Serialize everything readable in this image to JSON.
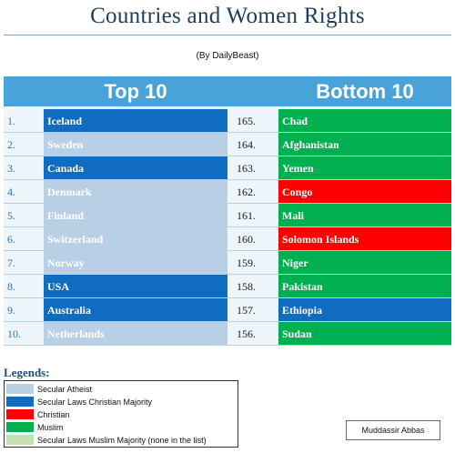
{
  "title": "Countries and Women Rights",
  "subtitle": "(By DailyBeast)",
  "headers": {
    "top": "Top 10",
    "bottom": "Bottom 10"
  },
  "colors": {
    "secular_atheist": "#b8cfe6",
    "secular_christian": "#0f6cc0",
    "christian": "#ff0000",
    "muslim": "#00b050",
    "secular_muslim": "#c6e0b4",
    "header": "#4aa3d8"
  },
  "rows": [
    {
      "rank": "1.",
      "country": "Iceland",
      "group": "secular_christian",
      "brank": "165.",
      "bcountry": "Chad",
      "bgroup": "muslim"
    },
    {
      "rank": "2.",
      "country": "Sweden",
      "group": "secular_atheist",
      "brank": "164.",
      "bcountry": "Afghanistan",
      "bgroup": "muslim"
    },
    {
      "rank": "3.",
      "country": "Canada",
      "group": "secular_christian",
      "brank": "163.",
      "bcountry": "Yemen",
      "bgroup": "muslim"
    },
    {
      "rank": "4.",
      "country": "Denmark",
      "group": "secular_atheist",
      "brank": "162.",
      "bcountry": "Congo",
      "bgroup": "christian"
    },
    {
      "rank": "5.",
      "country": "Finland",
      "group": "secular_atheist",
      "brank": "161.",
      "bcountry": "Mali",
      "bgroup": "muslim"
    },
    {
      "rank": "6.",
      "country": "Switzerland",
      "group": "secular_atheist",
      "brank": "160.",
      "bcountry": "Solomon Islands",
      "bgroup": "christian"
    },
    {
      "rank": "7.",
      "country": "Norway",
      "group": "secular_atheist",
      "brank": "159.",
      "bcountry": "Niger",
      "bgroup": "muslim"
    },
    {
      "rank": "8.",
      "country": "USA",
      "group": "secular_christian",
      "brank": "158.",
      "bcountry": "Pakistan",
      "bgroup": "muslim"
    },
    {
      "rank": "9.",
      "country": "Australia",
      "group": "secular_christian",
      "brank": "157.",
      "bcountry": "Ethiopia",
      "bgroup": "secular_christian"
    },
    {
      "rank": "10.",
      "country": "Netherlands",
      "group": "secular_atheist",
      "brank": "156.",
      "bcountry": "Sudan",
      "bgroup": "muslim"
    }
  ],
  "legends_title": "Legends:",
  "legends": [
    {
      "key": "secular_atheist",
      "label": "Secular Atheist"
    },
    {
      "key": "secular_christian",
      "label": "Secular Laws Christian Majority"
    },
    {
      "key": "christian",
      "label": "Christian"
    },
    {
      "key": "muslim",
      "label": "Muslim"
    },
    {
      "key": "secular_muslim",
      "label": "Secular Laws Muslim Majority (none in the list)"
    }
  ],
  "author": "Muddassir Abbas"
}
